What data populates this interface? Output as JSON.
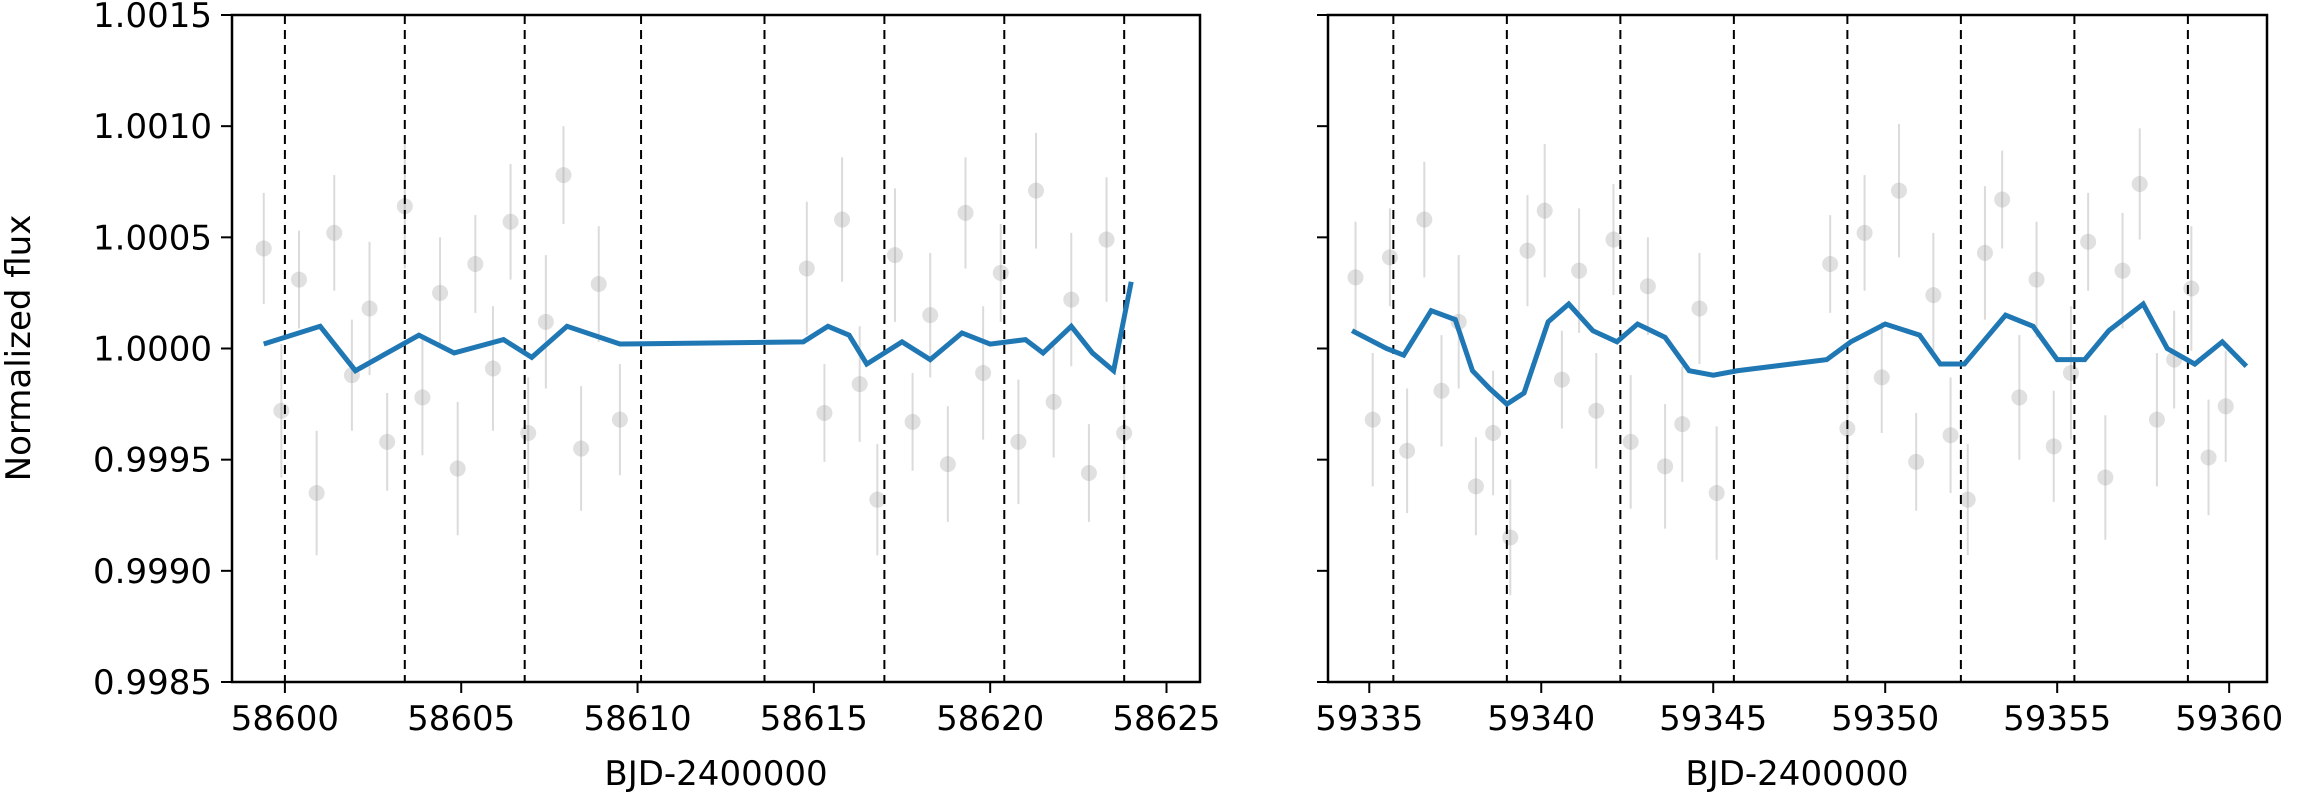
{
  "chart_data": [
    {
      "type": "scatter",
      "ylabel": "Normalized flux",
      "xlabel": "BJD-2400000",
      "xlim": [
        58598.5,
        58625.95
      ],
      "ylim": [
        0.9985,
        1.0015
      ],
      "xticks": [
        58600,
        58605,
        58610,
        58615,
        58620,
        58625
      ],
      "yticks": [
        0.9985,
        {
          "value": 0.999,
          "label": "0.9990"
        },
        0.9995,
        {
          "value": 1,
          "label": "1.0000"
        },
        1.0005,
        {
          "value": 1.001,
          "label": "1.0010"
        },
        1.0015
      ],
      "point_color": "#999999",
      "x": [
        58599.4,
        58599.9,
        58600.4,
        58600.9,
        58601.4,
        58601.9,
        58602.4,
        58602.9,
        58603.4,
        58603.9,
        58604.4,
        58604.9,
        58605.4,
        58605.9,
        58606.4,
        58606.9,
        58607.4,
        58607.9,
        58608.4,
        58608.9,
        58609.5,
        58614.8,
        58615.3,
        58615.8,
        58616.3,
        58616.8,
        58617.3,
        58617.8,
        58618.3,
        58618.8,
        58619.3,
        58619.8,
        58620.3,
        58620.8,
        58621.3,
        58621.8,
        58622.3,
        58622.8,
        58623.3,
        58623.8
      ],
      "values": [
        1.00045,
        0.99972,
        1.00031,
        0.99935,
        1.00052,
        0.99988,
        1.00018,
        0.99958,
        1.00064,
        0.99978,
        1.00025,
        0.99946,
        1.00038,
        0.99991,
        1.00057,
        0.99962,
        1.00012,
        1.00078,
        0.99955,
        1.00029,
        0.99968,
        1.00036,
        0.99971,
        1.00058,
        0.99984,
        0.99932,
        1.00042,
        0.99967,
        1.00015,
        0.99948,
        1.00061,
        0.99989,
        1.00034,
        0.99958,
        1.00071,
        0.99976,
        1.00022,
        0.99944,
        1.00049,
        0.99962
      ],
      "errors": [
        0.00025,
        0.0003,
        0.00022,
        0.00028,
        0.00026,
        0.00025,
        0.0003,
        0.00022,
        0.00028,
        0.00026,
        0.00025,
        0.0003,
        0.00022,
        0.00028,
        0.00026,
        0.00025,
        0.0003,
        0.00022,
        0.00028,
        0.00026,
        0.00025,
        0.0003,
        0.00022,
        0.00028,
        0.00026,
        0.00025,
        0.0003,
        0.00022,
        0.00028,
        0.00026,
        0.00025,
        0.0003,
        0.00022,
        0.00028,
        0.00026,
        0.00025,
        0.0003,
        0.00022,
        0.00028,
        0.00026
      ],
      "model_color": "#1f77b4",
      "model_x": [
        58599.4,
        58601.0,
        58602.0,
        58603.8,
        58604.8,
        58606.2,
        58607.0,
        58608.0,
        58609.5,
        58614.7,
        58615.4,
        58616.0,
        58616.5,
        58617.5,
        58618.3,
        58619.2,
        58620.0,
        58621.0,
        58621.5,
        58622.3,
        58622.9,
        58623.5,
        58624.0
      ],
      "model_values": [
        1.00002,
        1.0001,
        0.9999,
        1.00006,
        0.99998,
        1.00004,
        0.99996,
        1.0001,
        1.00002,
        1.00003,
        1.0001,
        1.00006,
        0.99993,
        1.00003,
        0.99995,
        1.00007,
        1.00002,
        1.00004,
        0.99998,
        1.0001,
        0.99998,
        0.9999,
        1.0003
      ],
      "vlines": [
        58600.0,
        58603.4,
        58606.8,
        58610.1,
        58613.6,
        58617.0,
        58620.4,
        58623.8
      ]
    },
    {
      "type": "scatter",
      "xlabel": "BJD-2400000",
      "xlim": [
        59333.8,
        59361.1
      ],
      "xticks": [
        59335,
        59340,
        59345,
        59350,
        59355,
        59360
      ],
      "point_color": "#999999",
      "x": [
        59334.6,
        59335.1,
        59335.6,
        59336.1,
        59336.6,
        59337.1,
        59337.6,
        59338.1,
        59338.6,
        59339.1,
        59339.6,
        59340.1,
        59340.6,
        59341.1,
        59341.6,
        59342.1,
        59342.6,
        59343.1,
        59343.6,
        59344.1,
        59344.6,
        59345.1,
        59348.4,
        59348.9,
        59349.4,
        59349.9,
        59350.4,
        59350.9,
        59351.4,
        59351.9,
        59352.4,
        59352.9,
        59353.4,
        59353.9,
        59354.4,
        59354.9,
        59355.4,
        59355.9,
        59356.4,
        59356.9,
        59357.4,
        59357.9,
        59358.4,
        59358.9,
        59359.4,
        59359.9
      ],
      "values": [
        1.00032,
        0.99968,
        1.00041,
        0.99954,
        1.00058,
        0.99981,
        1.00012,
        0.99938,
        0.99962,
        0.99915,
        1.00044,
        1.00062,
        0.99986,
        1.00035,
        0.99972,
        1.00049,
        0.99958,
        1.00028,
        0.99947,
        0.99966,
        1.00018,
        0.99935,
        1.00038,
        0.99964,
        1.00052,
        0.99987,
        1.00071,
        0.99949,
        1.00024,
        0.99961,
        0.99932,
        1.00043,
        1.00067,
        0.99978,
        1.00031,
        0.99956,
        0.99989,
        1.00048,
        0.99942,
        1.00035,
        1.00074,
        0.99968,
        0.99995,
        1.00027,
        0.99951,
        0.99974
      ],
      "errors": [
        0.00025,
        0.0003,
        0.00022,
        0.00028,
        0.00026,
        0.00025,
        0.0003,
        0.00022,
        0.00028,
        0.00026,
        0.00025,
        0.0003,
        0.00022,
        0.00028,
        0.00026,
        0.00025,
        0.0003,
        0.00022,
        0.00028,
        0.00026,
        0.00025,
        0.0003,
        0.00022,
        0.00028,
        0.00026,
        0.00025,
        0.0003,
        0.00022,
        0.00028,
        0.00026,
        0.00025,
        0.0003,
        0.00022,
        0.00028,
        0.00026,
        0.00025,
        0.0003,
        0.00022,
        0.00028,
        0.00026,
        0.00025,
        0.0003,
        0.00022,
        0.00028,
        0.00026,
        0.00025
      ],
      "model_color": "#1f77b4",
      "model_x": [
        59334.5,
        59335.5,
        59336.0,
        59336.8,
        59337.5,
        59338.0,
        59338.5,
        59339.0,
        59339.5,
        59340.2,
        59340.8,
        59341.5,
        59342.2,
        59342.8,
        59343.6,
        59344.3,
        59345.0,
        59345.7,
        59348.3,
        59349.0,
        59350.0,
        59351.0,
        59351.6,
        59352.3,
        59353.5,
        59354.3,
        59355.0,
        59355.8,
        59356.5,
        59357.5,
        59358.2,
        59359.0,
        59359.8,
        59360.5
      ],
      "model_values": [
        1.00008,
        1.0,
        0.99997,
        1.00017,
        1.00013,
        0.9999,
        0.99982,
        0.99975,
        0.9998,
        1.00012,
        1.0002,
        1.00008,
        1.00003,
        1.00011,
        1.00005,
        0.9999,
        0.99988,
        0.9999,
        0.99995,
        1.00003,
        1.00011,
        1.00006,
        0.99993,
        0.99993,
        1.00015,
        1.0001,
        0.99995,
        0.99995,
        1.00008,
        1.0002,
        1.0,
        0.99993,
        1.00003,
        0.99992
      ],
      "vlines": [
        59335.7,
        59339.0,
        59342.3,
        59345.6,
        59348.9,
        59352.2,
        59355.5,
        59358.8
      ]
    }
  ]
}
